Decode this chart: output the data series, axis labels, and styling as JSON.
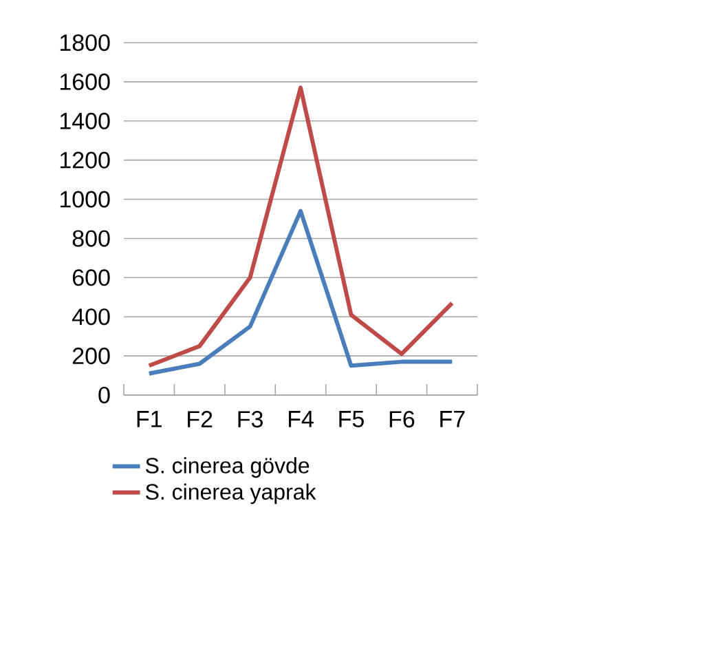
{
  "chart_data": {
    "type": "line",
    "categories": [
      "F1",
      "F2",
      "F3",
      "F4",
      "F5",
      "F6",
      "F7"
    ],
    "series": [
      {
        "name": "S. cinerea gövde",
        "color": "#4a7ebb",
        "values": [
          110,
          160,
          350,
          940,
          150,
          170,
          170
        ]
      },
      {
        "name": "S. cinerea yaprak",
        "color": "#be4b48",
        "values": [
          150,
          250,
          600,
          1570,
          410,
          210,
          470
        ]
      }
    ],
    "ylim": [
      0,
      1800
    ],
    "yticks": [
      0,
      200,
      400,
      600,
      800,
      1000,
      1200,
      1400,
      1600,
      1800
    ],
    "grid": "y",
    "legend": "bottom",
    "marker": "none",
    "line_style": "solid"
  }
}
